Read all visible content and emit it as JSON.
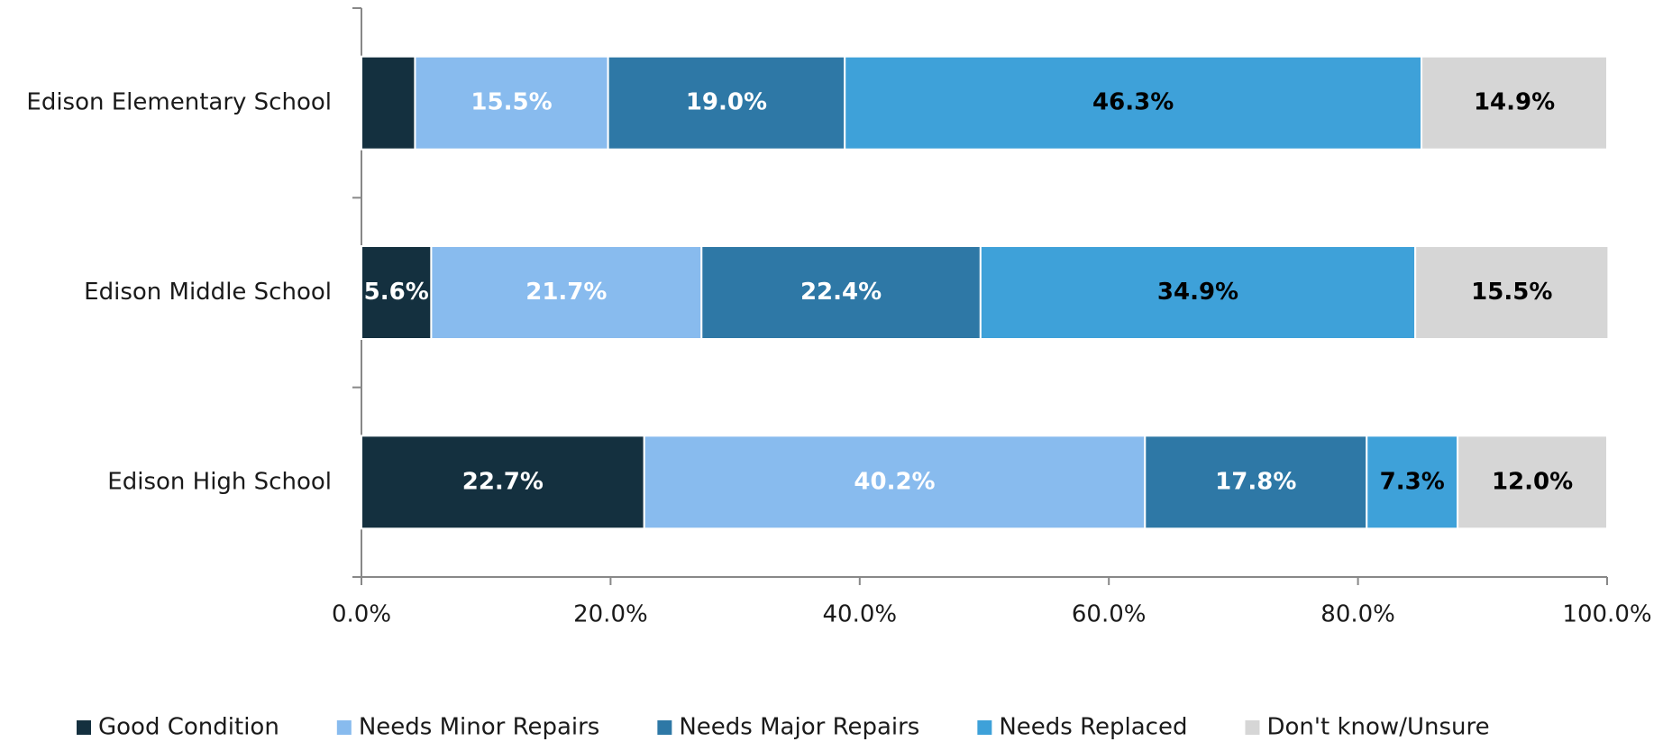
{
  "chart_data": {
    "type": "stacked_bar_horizontal",
    "categories": [
      "Edison Elementary School",
      "Edison Middle School",
      "Edison High School"
    ],
    "series": [
      {
        "name": "Good Condition",
        "color": "#14303f",
        "label_color": "#ffffff",
        "values": [
          4.3,
          5.6,
          22.7
        ],
        "value_labels": [
          null,
          "5.6%",
          "22.7%"
        ]
      },
      {
        "name": "Needs Minor Repairs",
        "color": "#88bbee",
        "label_color": "#ffffff",
        "values": [
          15.5,
          21.7,
          40.2
        ],
        "value_labels": [
          "15.5%",
          "21.7%",
          "40.2%"
        ]
      },
      {
        "name": "Needs Major Repairs",
        "color": "#2e78a6",
        "label_color": "#ffffff",
        "values": [
          19.0,
          22.4,
          17.8
        ],
        "value_labels": [
          "19.0%",
          "22.4%",
          "17.8%"
        ]
      },
      {
        "name": "Needs Replaced",
        "color": "#3ea1d9",
        "label_color": "#000000",
        "values": [
          46.3,
          34.9,
          7.3
        ],
        "value_labels": [
          "46.3%",
          "34.9%",
          "7.3%"
        ]
      },
      {
        "name": "Don't know/Unsure",
        "color": "#d6d6d6",
        "label_color": "#000000",
        "values": [
          14.9,
          15.5,
          12.0
        ],
        "value_labels": [
          "14.9%",
          "15.5%",
          "12.0%"
        ]
      }
    ],
    "xlim": [
      0,
      100
    ],
    "xticks": [
      {
        "value": 0,
        "label": "0.0%"
      },
      {
        "value": 20,
        "label": "20.0%"
      },
      {
        "value": 40,
        "label": "40.0%"
      },
      {
        "value": 60,
        "label": "60.0%"
      },
      {
        "value": 80,
        "label": "80.0%"
      },
      {
        "value": 100,
        "label": "100.0%"
      }
    ],
    "legend": "bottom"
  }
}
